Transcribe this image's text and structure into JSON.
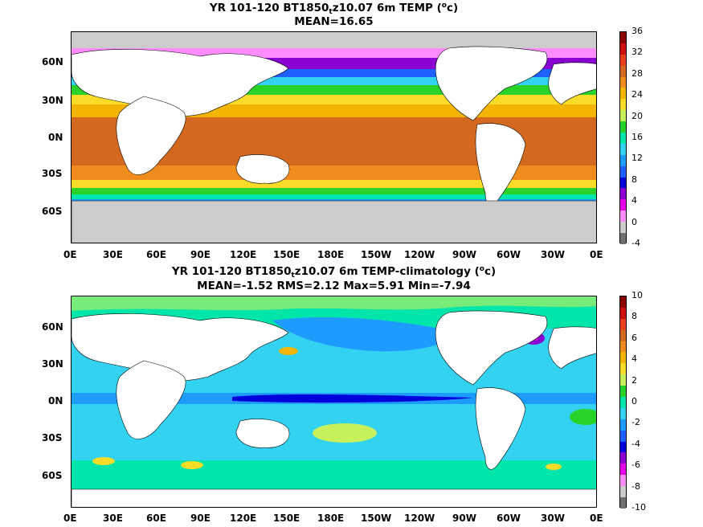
{
  "panel1": {
    "title_prefix": "YR 101-120 BT1850",
    "title_sub": "t",
    "title_mid": "z10.07 6m TEMP (",
    "title_sup": "o",
    "title_end": "c)",
    "subtitle": "MEAN=16.65",
    "lat_labels": [
      "60N",
      "30N",
      "0N",
      "30S",
      "60S"
    ],
    "lon_labels": [
      "0E",
      "30E",
      "60E",
      "90E",
      "120E",
      "150E",
      "180E",
      "150W",
      "120W",
      "90W",
      "60W",
      "30W",
      "0E"
    ],
    "colorbar_labels": [
      "36",
      "32",
      "28",
      "24",
      "20",
      "16",
      "12",
      "8",
      "4",
      "0",
      "-4"
    ],
    "colorbar_colors": [
      "#8b0000",
      "#cc1010",
      "#e8401a",
      "#d2691e",
      "#f08c1e",
      "#f5b400",
      "#f8dc28",
      "#c8f05a",
      "#28d228",
      "#00e6aa",
      "#32d2f0",
      "#1e9bff",
      "#1e5fff",
      "#0000dc",
      "#8a00d0",
      "#e600e6",
      "#ff8cff",
      "#cccccc",
      "#707070"
    ]
  },
  "panel2": {
    "title_prefix": "YR 101-120 BT1850",
    "title_sub": "t",
    "title_mid": "z10.07 6m TEMP-climatology (",
    "title_sup": "o",
    "title_end": "c)",
    "subtitle": "MEAN=-1.52   RMS=2.12   Max=5.91   Min=-7.94",
    "lat_labels": [
      "60N",
      "30N",
      "0N",
      "30S",
      "60S"
    ],
    "lon_labels": [
      "0E",
      "30E",
      "60E",
      "90E",
      "120E",
      "150E",
      "180E",
      "150W",
      "120W",
      "90W",
      "60W",
      "30W",
      "0E"
    ],
    "colorbar_labels": [
      "10",
      "8",
      "6",
      "4",
      "2",
      "0",
      "-2",
      "-4",
      "-6",
      "-8",
      "-10"
    ],
    "colorbar_colors": [
      "#8b0000",
      "#cc1010",
      "#e8401a",
      "#d2691e",
      "#f08c1e",
      "#f5b400",
      "#f8dc28",
      "#c8f05a",
      "#28d228",
      "#00e6aa",
      "#32d2f0",
      "#1e9bff",
      "#1e5fff",
      "#0000dc",
      "#8a00d0",
      "#e600e6",
      "#ff8cff",
      "#cccccc",
      "#707070"
    ]
  }
}
